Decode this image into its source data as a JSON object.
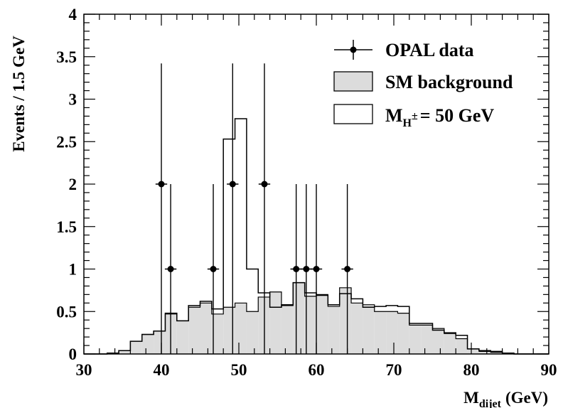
{
  "chart_data": {
    "type": "histogram",
    "xlabel": "M",
    "xlabel_sub": "dijet",
    "xlabel_unit": "(GeV)",
    "ylabel": "Events / 1.5 GeV",
    "xlim": [
      30,
      90
    ],
    "ylim": [
      0,
      4
    ],
    "x_ticks": [
      "30",
      "40",
      "50",
      "60",
      "70",
      "80",
      "90"
    ],
    "y_ticks": [
      "0",
      "0.5",
      "1",
      "1.5",
      "2",
      "2.5",
      "3",
      "3.5",
      "4"
    ],
    "legend_placement": "top-right",
    "legend": {
      "data": "OPAL data",
      "background": "SM background",
      "signal_main": "M",
      "signal_sub": "H",
      "signal_sup": "±",
      "signal_rest": "= 50 GeV"
    },
    "bin_edges": [
      30,
      31.5,
      33,
      34.5,
      36,
      37.5,
      39,
      40.5,
      42,
      43.5,
      45,
      46.5,
      48,
      49.5,
      51,
      52.5,
      54,
      55.5,
      57,
      58.5,
      60,
      61.5,
      63,
      64.5,
      66,
      67.5,
      69,
      70.5,
      72,
      73.5,
      75,
      76.5,
      78,
      79.5,
      81,
      82.5,
      84,
      85.5,
      87,
      88.5,
      90
    ],
    "series": [
      {
        "name": "SM background",
        "style": "filled-histogram",
        "values": [
          0,
          0,
          0.01,
          0.04,
          0.15,
          0.23,
          0.27,
          0.47,
          0.39,
          0.55,
          0.6,
          0.47,
          0.55,
          0.6,
          0.5,
          0.67,
          0.73,
          0.57,
          0.84,
          0.68,
          0.7,
          0.56,
          0.78,
          0.6,
          0.58,
          0.5,
          0.5,
          0.48,
          0.34,
          0.34,
          0.3,
          0.24,
          0.18,
          0.06,
          0.03,
          0.02,
          0.01,
          0,
          0,
          0
        ]
      },
      {
        "name": "M_H± = 50 GeV",
        "style": "open-histogram",
        "values": [
          0,
          0,
          0.01,
          0.04,
          0.15,
          0.23,
          0.27,
          0.48,
          0.39,
          0.57,
          0.62,
          0.53,
          2.53,
          2.77,
          1.0,
          0.72,
          0.55,
          0.58,
          0.84,
          0.72,
          0.69,
          0.58,
          0.71,
          0.65,
          0.55,
          0.56,
          0.57,
          0.56,
          0.36,
          0.36,
          0.28,
          0.25,
          0.22,
          0.06,
          0.04,
          0.03,
          0.01,
          0,
          0,
          0
        ]
      },
      {
        "name": "OPAL data",
        "style": "points-with-errors",
        "points": [
          {
            "x": 40,
            "y": 2,
            "err_low": 2,
            "err_high": 1.42
          },
          {
            "x": 41.2,
            "y": 1,
            "err_low": 1,
            "err_high": 1.0
          },
          {
            "x": 46.7,
            "y": 1,
            "err_low": 1,
            "err_high": 1.0
          },
          {
            "x": 49.2,
            "y": 2,
            "err_low": 2,
            "err_high": 1.42
          },
          {
            "x": 53.3,
            "y": 2,
            "err_low": 2,
            "err_high": 1.42
          },
          {
            "x": 57.4,
            "y": 1,
            "err_low": 1,
            "err_high": 1.0
          },
          {
            "x": 58.7,
            "y": 1,
            "err_low": 1,
            "err_high": 1.0
          },
          {
            "x": 60,
            "y": 1,
            "err_low": 1,
            "err_high": 1.0
          },
          {
            "x": 64,
            "y": 1,
            "err_low": 1,
            "err_high": 1.0
          }
        ]
      }
    ],
    "colors": {
      "background_fill": "#dcdcdc",
      "line": "#000000"
    }
  }
}
